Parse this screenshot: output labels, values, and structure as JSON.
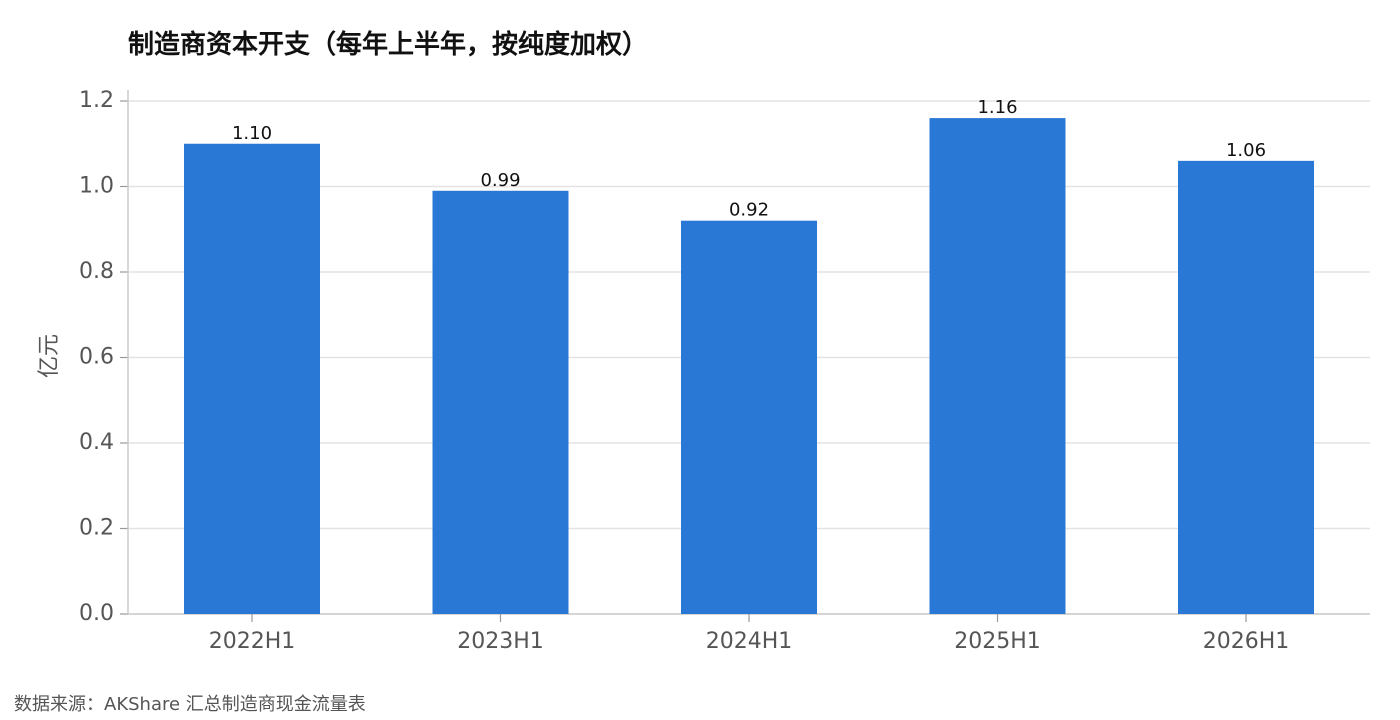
{
  "chart_data": {
    "type": "bar",
    "title": "制造商资本开支（每年上半年，按纯度加权）",
    "xlabel": "",
    "ylabel": "亿元",
    "categories": [
      "2022H1",
      "2023H1",
      "2024H1",
      "2025H1",
      "2026H1"
    ],
    "values": [
      1.1,
      0.99,
      0.92,
      1.16,
      1.06
    ],
    "value_labels": [
      "1.10",
      "0.99",
      "0.92",
      "1.16",
      "1.06"
    ],
    "ylim": [
      0,
      1.2
    ],
    "yticks": [
      "0.0",
      "0.2",
      "0.4",
      "0.6",
      "0.8",
      "1.0",
      "1.2"
    ],
    "grid": "horizontal",
    "bar_color": "#2a78d6"
  },
  "footer": {
    "source": "数据来源：AKShare 汇总制造商现金流量表"
  }
}
